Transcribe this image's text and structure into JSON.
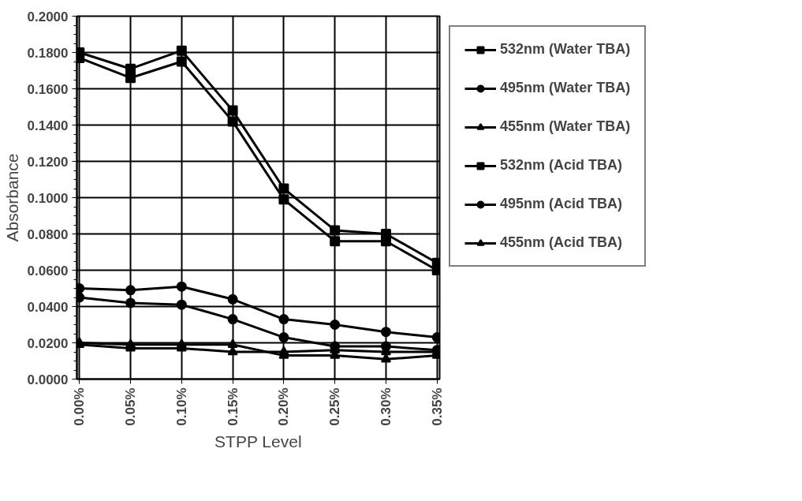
{
  "chart_data": {
    "type": "line",
    "xlabel": "STPP Level",
    "ylabel": "Absorbance",
    "categories": [
      "0.00%",
      "0.05%",
      "0.10%",
      "0.15%",
      "0.20%",
      "0.25%",
      "0.30%",
      "0.35%"
    ],
    "ylim": [
      0,
      0.2
    ],
    "yticks": [
      {
        "value": 0,
        "label": "0.0000"
      },
      {
        "value": 0.02,
        "label": "0.0200"
      },
      {
        "value": 0.04,
        "label": "0.0400"
      },
      {
        "value": 0.06,
        "label": "0.0600"
      },
      {
        "value": 0.08,
        "label": "0.0800"
      },
      {
        "value": 0.1,
        "label": "0.1000"
      },
      {
        "value": 0.12,
        "label": "0.1200"
      },
      {
        "value": 0.14,
        "label": "0.1400"
      },
      {
        "value": 0.16,
        "label": "0.1600"
      },
      {
        "value": 0.18,
        "label": "0.1800"
      },
      {
        "value": 0.2,
        "label": "0.2000"
      }
    ],
    "grid": true,
    "legend": "right",
    "line_style": "solid",
    "series": [
      {
        "name": "532nm (Water TBA)",
        "color": "#000000",
        "marker": "square",
        "values": [
          0.18,
          0.171,
          0.181,
          0.148,
          0.105,
          0.082,
          0.08,
          0.064
        ]
      },
      {
        "name": "495nm (Water TBA)",
        "color": "#000000",
        "marker": "circle",
        "values": [
          0.05,
          0.049,
          0.051,
          0.044,
          0.033,
          0.03,
          0.026,
          0.023
        ]
      },
      {
        "name": "455nm (Water TBA)",
        "color": "#000000",
        "marker": "triangle",
        "values": [
          0.019,
          0.017,
          0.017,
          0.015,
          0.015,
          0.016,
          0.015,
          0.015
        ]
      },
      {
        "name": "532nm (Acid TBA)",
        "color": "#000000",
        "marker": "square",
        "values": [
          0.177,
          0.166,
          0.175,
          0.142,
          0.099,
          0.076,
          0.076,
          0.06
        ]
      },
      {
        "name": "495nm (Acid TBA)",
        "color": "#000000",
        "marker": "circle",
        "values": [
          0.045,
          0.042,
          0.041,
          0.033,
          0.023,
          0.018,
          0.018,
          0.016
        ]
      },
      {
        "name": "455nm (Acid TBA)",
        "color": "#000000",
        "marker": "triangle",
        "values": [
          0.02,
          0.019,
          0.019,
          0.019,
          0.013,
          0.013,
          0.011,
          0.013
        ]
      }
    ]
  }
}
